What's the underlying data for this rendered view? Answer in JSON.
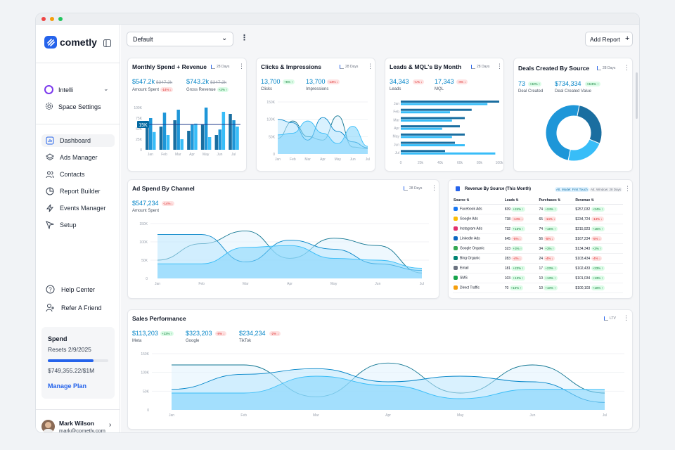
{
  "sidebar": {
    "brand": "cometly",
    "workspace": "Intelli",
    "space_settings": "Space Settings",
    "nav": [
      {
        "label": "Dashboard",
        "icon": "dashboard-icon"
      },
      {
        "label": "Ads Manager",
        "icon": "layers-icon"
      },
      {
        "label": "Contacts",
        "icon": "users-icon"
      },
      {
        "label": "Report Builder",
        "icon": "pie-icon"
      },
      {
        "label": "Events Manager",
        "icon": "bolt-icon"
      },
      {
        "label": "Setup",
        "icon": "send-icon"
      }
    ],
    "help": "Help Center",
    "refer": "Refer A Friend",
    "spend": {
      "title": "Spend",
      "resets": "Resets 2/9/2025",
      "amount": "$749,355.22/$1M",
      "progress": 0.75,
      "manage": "Manage Plan"
    },
    "user": {
      "name": "Mark Wilson",
      "email": "mark@cometly.com"
    }
  },
  "topbar": {
    "view": "Default",
    "add_report": "Add Report"
  },
  "cards": {
    "monthly": {
      "title": "Monthly Spend + Revenue",
      "range": "28 Days",
      "kpi1": {
        "value": "$547.2k",
        "prev": "$347.2k",
        "label": "Amount Spent",
        "delta": "-14% ↓"
      },
      "kpi2": {
        "value": "$743.2k",
        "prev": "$347.2k",
        "label": "Gross Revenue",
        "delta": "+2% ↑"
      },
      "tooltip": "15K"
    },
    "clicks": {
      "title": "Clicks & Impressions",
      "range": "28 Days",
      "kpi1": {
        "value": "13,700",
        "label": "Clicks",
        "delta": "+5% ↑"
      },
      "kpi2": {
        "value": "13,700",
        "label": "Impressions",
        "delta": "-14% ↓"
      }
    },
    "leads": {
      "title": "Leads & MQL's By Month",
      "range": "28 Days",
      "kpi1": {
        "value": "34,343",
        "label": "Leads",
        "delta": "-1% ↓"
      },
      "kpi2": {
        "value": "17,343",
        "label": "MQL",
        "delta": "-4% ↓"
      }
    },
    "deals": {
      "title": "Deals Created By Source",
      "range": "28 Days",
      "kpi1": {
        "value": "73",
        "label": "Deal Created",
        "delta": "+32% ↑"
      },
      "kpi2": {
        "value": "$734,334",
        "label": "Deal Created Value",
        "delta": "+345% ↑"
      }
    },
    "adspend": {
      "title": "Ad Spend By Channel",
      "range": "28 Days",
      "kpi1": {
        "value": "$547,234",
        "label": "Amount Spent",
        "delta": "-14% ↓"
      }
    },
    "revsrc": {
      "title": "Revenue By Source (This Month)",
      "tag1": "Att. Model: First Touch",
      "tag2": "Att. Window: 28 Days",
      "headers": [
        "Source",
        "Leads",
        "Purchases",
        "Revenue"
      ],
      "rows": [
        {
          "source": "Facebook Ads",
          "leads": "839",
          "ld": "+24% ↑",
          "lu": true,
          "purch": "74",
          "pd": "+24% ↑",
          "pu": true,
          "rev": "$257,032",
          "rd": "+24% ↑",
          "ru": true
        },
        {
          "source": "Google Ads",
          "leads": "738",
          "ld": "-14% ↓",
          "lu": false,
          "purch": "65",
          "pd": "-14% ↓",
          "pu": false,
          "rev": "$234,724",
          "rd": "-14% ↓",
          "ru": false
        },
        {
          "source": "Instagram Ads",
          "leads": "732",
          "ld": "+16% ↑",
          "lu": true,
          "purch": "74",
          "pd": "+16% ↑",
          "pu": true,
          "rev": "$215,923",
          "rd": "+16% ↑",
          "ru": true
        },
        {
          "source": "LinkedIn Ads",
          "leads": "645",
          "ld": "-5% ↓",
          "lu": false,
          "purch": "56",
          "pd": "-5% ↓",
          "pu": false,
          "rev": "$167,234",
          "rd": "-5% ↓",
          "ru": false
        },
        {
          "source": "Google Organic",
          "leads": "323",
          "ld": "+3% ↑",
          "lu": true,
          "purch": "34",
          "pd": "+3% ↑",
          "pu": true,
          "rev": "$134,343",
          "rd": "+3% ↑",
          "ru": true
        },
        {
          "source": "Bing Organic",
          "leads": "283",
          "ld": "-4% ↓",
          "lu": false,
          "purch": "24",
          "pd": "-4% ↓",
          "pu": false,
          "rev": "$103,434",
          "rd": "-4% ↓",
          "ru": false
        },
        {
          "source": "Email",
          "leads": "181",
          "ld": "+23% ↑",
          "lu": true,
          "purch": "17",
          "pd": "+23% ↑",
          "pu": true,
          "rev": "$102,433",
          "rd": "+23% ↑",
          "ru": true
        },
        {
          "source": "SMS",
          "leads": "103",
          "ld": "+13% ↑",
          "lu": true,
          "purch": "10",
          "pd": "+13% ↑",
          "pu": true,
          "rev": "$101,034",
          "rd": "+13% ↑",
          "ru": true
        },
        {
          "source": "Direct Traffic",
          "leads": "70",
          "ld": "+10% ↑",
          "lu": true,
          "purch": "10",
          "pd": "+10% ↑",
          "pu": true,
          "rev": "$100,103",
          "rd": "+10% ↑",
          "ru": true
        }
      ]
    },
    "sales": {
      "title": "Sales Performance",
      "range": "LTV",
      "kpis": [
        {
          "value": "$113,203",
          "label": "Meta",
          "delta": "+23% ↑",
          "up": true
        },
        {
          "value": "$323,203",
          "label": "Google",
          "delta": "-8% ↓",
          "up": false
        },
        {
          "value": "$234,234",
          "label": "TikTok",
          "delta": "-2% ↓",
          "up": false
        }
      ]
    }
  },
  "colors": {
    "accent": "#2563eb",
    "bar_dark": "#1a6ea0",
    "bar_mid": "#1e96d8",
    "bar_light": "#38bdf8",
    "area": "#bae6fd"
  },
  "chart_data": [
    {
      "id": "monthly",
      "type": "bar",
      "categories": [
        "Jan",
        "Feb",
        "Mar",
        "Apr",
        "May",
        "Jun",
        "Jul"
      ],
      "yticks": [
        "100K",
        "75K",
        "50K",
        "25K",
        "0"
      ],
      "ylim": [
        0,
        100000
      ],
      "series": [
        {
          "values": [
            60000,
            55000,
            70000,
            45000,
            60000,
            35000,
            85000
          ]
        },
        {
          "values": [
            75000,
            88000,
            95000,
            60000,
            100000,
            48000,
            70000
          ]
        },
        {
          "values": [
            42000,
            35000,
            25000,
            62000,
            30000,
            90000,
            55000
          ]
        }
      ]
    },
    {
      "id": "clicks",
      "type": "area",
      "categories": [
        "Jan",
        "Feb",
        "Mar",
        "Apr",
        "May",
        "Jun",
        "Jul"
      ],
      "yticks": [
        "150K",
        "100K",
        "50K",
        "0"
      ],
      "ylim": [
        0,
        150000
      ],
      "series": [
        {
          "values": [
            45000,
            95000,
            50000,
            40000,
            110000,
            20000,
            15000
          ]
        },
        {
          "values": [
            100000,
            90000,
            40000,
            105000,
            65000,
            35000,
            18000
          ]
        },
        {
          "values": [
            55000,
            60000,
            95000,
            60000,
            30000,
            80000,
            22000
          ]
        }
      ]
    },
    {
      "id": "leads",
      "type": "bar-horizontal",
      "categories": [
        "Jan",
        "Feb",
        "Mar",
        "Apr",
        "May",
        "Jun",
        "Jul"
      ],
      "xticks": [
        "0",
        "20k",
        "40k",
        "60k",
        "80k",
        "100k"
      ],
      "xlim": [
        0,
        100000
      ],
      "series": [
        {
          "values": [
            100000,
            72000,
            65000,
            60000,
            65000,
            55000,
            45000
          ]
        },
        {
          "values": [
            88000,
            50000,
            52000,
            42000,
            52000,
            65000,
            96000
          ]
        }
      ]
    },
    {
      "id": "deals",
      "type": "pie",
      "values": [
        28,
        22,
        50
      ],
      "colors": [
        "#1a6ea0",
        "#38bdf8",
        "#1e96d8"
      ]
    },
    {
      "id": "adspend",
      "type": "area",
      "categories": [
        "Jan",
        "Feb",
        "Mar",
        "Apr",
        "May",
        "Jun",
        "Jul"
      ],
      "yticks": [
        "150K",
        "100K",
        "50K",
        "0"
      ],
      "ylim": [
        0,
        150000
      ],
      "series": [
        {
          "values": [
            50000,
            95000,
            130000,
            55000,
            110000,
            90000,
            15000
          ]
        },
        {
          "values": [
            120000,
            120000,
            45000,
            105000,
            80000,
            40000,
            22000
          ]
        },
        {
          "values": [
            40000,
            40000,
            85000,
            90000,
            55000,
            50000,
            28000
          ]
        }
      ]
    },
    {
      "id": "sales",
      "type": "area",
      "categories": [
        "Jan",
        "Feb",
        "Mar",
        "Apr",
        "May",
        "Jun",
        "Jul"
      ],
      "yticks": [
        "150K",
        "100K",
        "50K",
        "0"
      ],
      "ylim": [
        0,
        150000
      ],
      "series": [
        {
          "values": [
            120000,
            120000,
            35000,
            125000,
            45000,
            120000,
            45000
          ]
        },
        {
          "values": [
            55000,
            95000,
            110000,
            75000,
            90000,
            75000,
            20000
          ]
        },
        {
          "values": [
            45000,
            45000,
            90000,
            65000,
            30000,
            55000,
            55000
          ]
        }
      ]
    }
  ]
}
